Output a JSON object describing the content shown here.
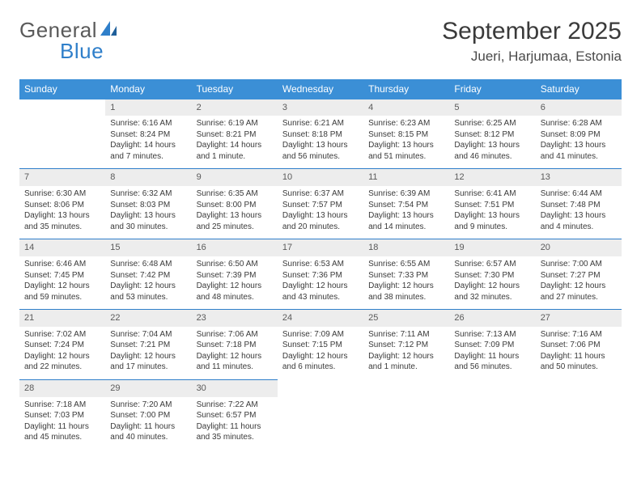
{
  "logo": {
    "word1": "General",
    "word2": "Blue"
  },
  "title": "September 2025",
  "location": "Jueri, Harjumaa, Estonia",
  "weekdays": [
    "Sunday",
    "Monday",
    "Tuesday",
    "Wednesday",
    "Thursday",
    "Friday",
    "Saturday"
  ],
  "colors": {
    "header_bg": "#3b8fd6",
    "header_text": "#ffffff",
    "rule": "#2f7fca",
    "daynum_bg": "#ededed",
    "text": "#3a3a3a",
    "logo_gray": "#5a5a5a",
    "logo_blue": "#2f7fca",
    "page_bg": "#ffffff"
  },
  "typography": {
    "title_size_pt": 30,
    "location_size_pt": 17,
    "weekday_size_pt": 12,
    "daynum_size_pt": 11,
    "body_size_pt": 10
  },
  "layout": {
    "columns": 7,
    "rows": 5,
    "start_weekday_index": 1,
    "days_in_month": 30
  },
  "days": [
    {
      "n": 1,
      "sunrise": "6:16 AM",
      "sunset": "8:24 PM",
      "daylight": "14 hours and 7 minutes."
    },
    {
      "n": 2,
      "sunrise": "6:19 AM",
      "sunset": "8:21 PM",
      "daylight": "14 hours and 1 minute."
    },
    {
      "n": 3,
      "sunrise": "6:21 AM",
      "sunset": "8:18 PM",
      "daylight": "13 hours and 56 minutes."
    },
    {
      "n": 4,
      "sunrise": "6:23 AM",
      "sunset": "8:15 PM",
      "daylight": "13 hours and 51 minutes."
    },
    {
      "n": 5,
      "sunrise": "6:25 AM",
      "sunset": "8:12 PM",
      "daylight": "13 hours and 46 minutes."
    },
    {
      "n": 6,
      "sunrise": "6:28 AM",
      "sunset": "8:09 PM",
      "daylight": "13 hours and 41 minutes."
    },
    {
      "n": 7,
      "sunrise": "6:30 AM",
      "sunset": "8:06 PM",
      "daylight": "13 hours and 35 minutes."
    },
    {
      "n": 8,
      "sunrise": "6:32 AM",
      "sunset": "8:03 PM",
      "daylight": "13 hours and 30 minutes."
    },
    {
      "n": 9,
      "sunrise": "6:35 AM",
      "sunset": "8:00 PM",
      "daylight": "13 hours and 25 minutes."
    },
    {
      "n": 10,
      "sunrise": "6:37 AM",
      "sunset": "7:57 PM",
      "daylight": "13 hours and 20 minutes."
    },
    {
      "n": 11,
      "sunrise": "6:39 AM",
      "sunset": "7:54 PM",
      "daylight": "13 hours and 14 minutes."
    },
    {
      "n": 12,
      "sunrise": "6:41 AM",
      "sunset": "7:51 PM",
      "daylight": "13 hours and 9 minutes."
    },
    {
      "n": 13,
      "sunrise": "6:44 AM",
      "sunset": "7:48 PM",
      "daylight": "13 hours and 4 minutes."
    },
    {
      "n": 14,
      "sunrise": "6:46 AM",
      "sunset": "7:45 PM",
      "daylight": "12 hours and 59 minutes."
    },
    {
      "n": 15,
      "sunrise": "6:48 AM",
      "sunset": "7:42 PM",
      "daylight": "12 hours and 53 minutes."
    },
    {
      "n": 16,
      "sunrise": "6:50 AM",
      "sunset": "7:39 PM",
      "daylight": "12 hours and 48 minutes."
    },
    {
      "n": 17,
      "sunrise": "6:53 AM",
      "sunset": "7:36 PM",
      "daylight": "12 hours and 43 minutes."
    },
    {
      "n": 18,
      "sunrise": "6:55 AM",
      "sunset": "7:33 PM",
      "daylight": "12 hours and 38 minutes."
    },
    {
      "n": 19,
      "sunrise": "6:57 AM",
      "sunset": "7:30 PM",
      "daylight": "12 hours and 32 minutes."
    },
    {
      "n": 20,
      "sunrise": "7:00 AM",
      "sunset": "7:27 PM",
      "daylight": "12 hours and 27 minutes."
    },
    {
      "n": 21,
      "sunrise": "7:02 AM",
      "sunset": "7:24 PM",
      "daylight": "12 hours and 22 minutes."
    },
    {
      "n": 22,
      "sunrise": "7:04 AM",
      "sunset": "7:21 PM",
      "daylight": "12 hours and 17 minutes."
    },
    {
      "n": 23,
      "sunrise": "7:06 AM",
      "sunset": "7:18 PM",
      "daylight": "12 hours and 11 minutes."
    },
    {
      "n": 24,
      "sunrise": "7:09 AM",
      "sunset": "7:15 PM",
      "daylight": "12 hours and 6 minutes."
    },
    {
      "n": 25,
      "sunrise": "7:11 AM",
      "sunset": "7:12 PM",
      "daylight": "12 hours and 1 minute."
    },
    {
      "n": 26,
      "sunrise": "7:13 AM",
      "sunset": "7:09 PM",
      "daylight": "11 hours and 56 minutes."
    },
    {
      "n": 27,
      "sunrise": "7:16 AM",
      "sunset": "7:06 PM",
      "daylight": "11 hours and 50 minutes."
    },
    {
      "n": 28,
      "sunrise": "7:18 AM",
      "sunset": "7:03 PM",
      "daylight": "11 hours and 45 minutes."
    },
    {
      "n": 29,
      "sunrise": "7:20 AM",
      "sunset": "7:00 PM",
      "daylight": "11 hours and 40 minutes."
    },
    {
      "n": 30,
      "sunrise": "7:22 AM",
      "sunset": "6:57 PM",
      "daylight": "11 hours and 35 minutes."
    }
  ],
  "labels": {
    "sunrise": "Sunrise:",
    "sunset": "Sunset:",
    "daylight": "Daylight:"
  }
}
